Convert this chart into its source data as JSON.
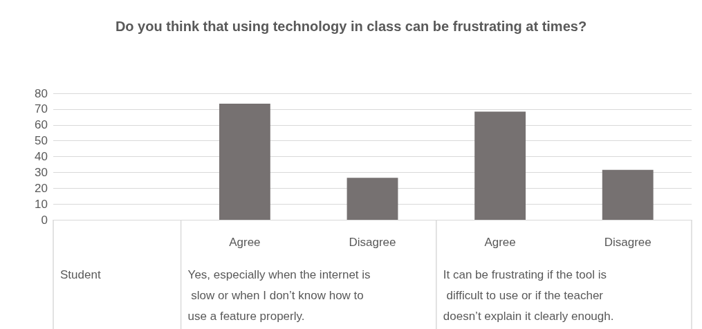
{
  "chart_data": {
    "type": "bar",
    "title": "Do you think that using technology in class can be frustrating at times?",
    "categories": [
      null,
      "Agree",
      "Disagree",
      "Agree",
      "Disagree"
    ],
    "values": [
      null,
      73.4,
      26.6,
      68.4,
      31.6
    ],
    "color": "#767171",
    "ylim": [
      0,
      80
    ],
    "yticks": [
      0,
      10,
      20,
      30,
      40,
      50,
      60,
      70,
      80
    ],
    "grid": "y",
    "annotations": [
      "Student",
      "Yes, especially when the internet is slow or when I don’t know how to use a feature properly.",
      "It can be frustrating if the tool is difficult to use or if the teacher doesn’t explain it clearly enough."
    ]
  }
}
